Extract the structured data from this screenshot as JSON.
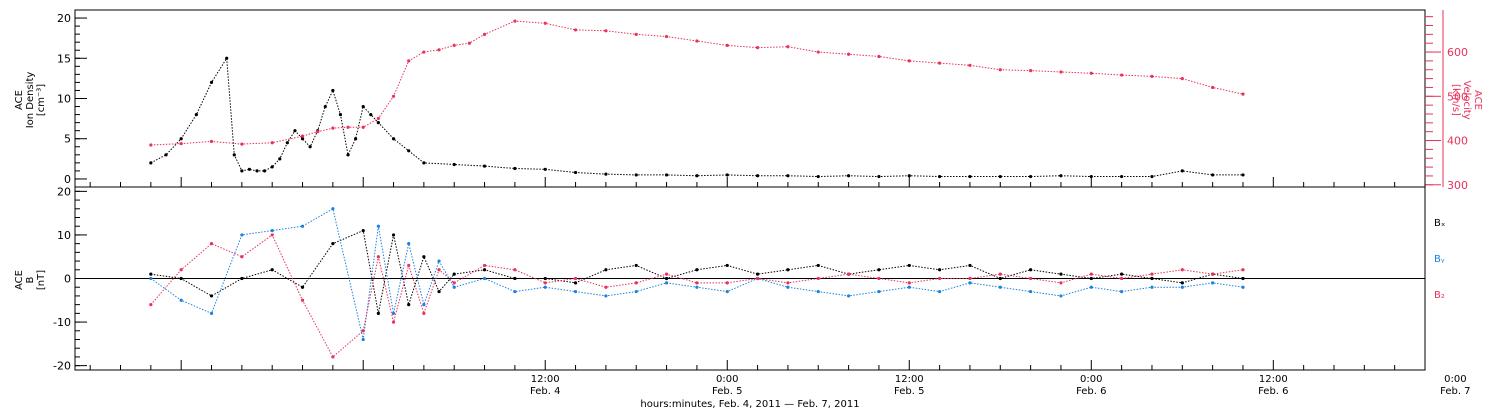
{
  "chart_data": [
    {
      "type": "scatter",
      "panel": "top",
      "left_axis": {
        "label_lines": [
          "ACE",
          "Ion Density",
          "[cm⁻³]"
        ],
        "ylim": [
          -1,
          21
        ],
        "ticks": [
          0,
          5,
          10,
          15,
          20
        ],
        "tick_labels": [
          "0",
          "5",
          "10",
          "15",
          "20"
        ]
      },
      "right_axis": {
        "label_lines": [
          "ACE",
          "Velocity",
          "[km/s]"
        ],
        "ylim": [
          295,
          695
        ],
        "ticks": [
          300,
          400,
          500,
          600
        ],
        "tick_labels": [
          "300",
          "400",
          "500",
          "600"
        ]
      },
      "series": [
        {
          "color": "#000000",
          "axis": "left",
          "x": [
            -14,
            -13,
            -12,
            -11,
            -10,
            -9,
            -8.5,
            -8,
            -7.5,
            -7,
            -6.5,
            -6,
            -5.5,
            -5,
            -4.5,
            -4,
            -3.5,
            -3,
            -2.5,
            -2,
            -1.5,
            -1,
            -0.5,
            0,
            0.5,
            1,
            2,
            3,
            4,
            6,
            8,
            10,
            12,
            14,
            16,
            18,
            20,
            22,
            24,
            26,
            28,
            30,
            32,
            34,
            36,
            38,
            40,
            42,
            44,
            46,
            48,
            50,
            52,
            54,
            56,
            58
          ],
          "y": [
            2,
            3,
            5,
            8,
            12,
            15,
            3,
            1,
            1.2,
            1,
            1,
            1.5,
            2.5,
            4.5,
            6,
            5,
            4,
            6,
            9,
            11,
            8,
            3,
            5,
            9,
            8,
            7,
            5,
            3.5,
            2,
            1.8,
            1.6,
            1.3,
            1.2,
            0.8,
            0.6,
            0.5,
            0.5,
            0.4,
            0.5,
            0.4,
            0.4,
            0.3,
            0.4,
            0.3,
            0.4,
            0.3,
            0.3,
            0.3,
            0.3,
            0.4,
            0.3,
            0.3,
            0.3,
            1,
            0.5,
            0.5
          ]
        },
        {
          "color": "#e8325a",
          "axis": "right",
          "x": [
            -14,
            -12,
            -10,
            -8,
            -6,
            -4,
            -3,
            -2,
            -1,
            0,
            1,
            2,
            3,
            4,
            5,
            6,
            7,
            8,
            10,
            12,
            14,
            16,
            18,
            20,
            22,
            24,
            26,
            28,
            30,
            32,
            34,
            36,
            38,
            40,
            42,
            44,
            46,
            48,
            50,
            52,
            54,
            56,
            58
          ],
          "y": [
            390,
            393,
            398,
            392,
            395,
            410,
            420,
            428,
            430,
            430,
            450,
            500,
            580,
            600,
            605,
            615,
            620,
            640,
            670,
            665,
            650,
            648,
            640,
            635,
            625,
            615,
            610,
            612,
            600,
            595,
            590,
            580,
            575,
            570,
            560,
            558,
            555,
            552,
            548,
            545,
            540,
            520,
            505
          ]
        }
      ]
    },
    {
      "type": "scatter",
      "panel": "bottom",
      "left_axis": {
        "label_lines": [
          "ACE",
          "B",
          "[nT]"
        ],
        "ylim": [
          -21,
          21
        ],
        "ticks": [
          -20,
          -10,
          0,
          10,
          20
        ],
        "tick_labels": [
          "-20",
          "-10",
          "0",
          "10",
          "20"
        ]
      },
      "legend": {
        "placement": "right",
        "entries": [
          {
            "text": "Bₓ",
            "color": "#000000"
          },
          {
            "text": "Bᵧ",
            "color": "#1a82e0"
          },
          {
            "text": "B₂",
            "color": "#e8325a"
          }
        ]
      },
      "series": [
        {
          "color": "#000000",
          "x": [
            -14,
            -12,
            -10,
            -8,
            -6,
            -4,
            -2,
            0,
            1,
            2,
            3,
            4,
            5,
            6,
            8,
            10,
            12,
            14,
            16,
            18,
            20,
            22,
            24,
            26,
            28,
            30,
            32,
            34,
            36,
            38,
            40,
            42,
            44,
            46,
            48,
            50,
            52,
            54,
            56,
            58
          ],
          "y": [
            1,
            0,
            -4,
            0,
            2,
            -2,
            8,
            11,
            -8,
            10,
            -6,
            5,
            -3,
            1,
            2,
            0,
            0,
            -1,
            2,
            3,
            0,
            2,
            3,
            1,
            2,
            3,
            1,
            2,
            3,
            2,
            3,
            0,
            2,
            1,
            0,
            1,
            0,
            -1,
            1,
            0
          ]
        },
        {
          "color": "#1a82e0",
          "x": [
            -14,
            -12,
            -10,
            -8,
            -6,
            -4,
            -2,
            0,
            1,
            2,
            3,
            4,
            5,
            6,
            8,
            10,
            12,
            14,
            16,
            18,
            20,
            22,
            24,
            26,
            28,
            30,
            32,
            34,
            36,
            38,
            40,
            42,
            44,
            46,
            48,
            50,
            52,
            54,
            56,
            58
          ],
          "y": [
            0,
            -5,
            -8,
            10,
            11,
            12,
            16,
            -14,
            12,
            -8,
            8,
            -6,
            4,
            -2,
            0,
            -3,
            -2,
            -3,
            -4,
            -3,
            -1,
            -2,
            -3,
            0,
            -2,
            -3,
            -4,
            -3,
            -2,
            -3,
            -1,
            -2,
            -3,
            -4,
            -2,
            -3,
            -2,
            -2,
            -1,
            -2
          ]
        },
        {
          "color": "#e8325a",
          "x": [
            -14,
            -12,
            -10,
            -8,
            -6,
            -4,
            -2,
            0,
            1,
            2,
            3,
            4,
            5,
            6,
            8,
            10,
            12,
            14,
            16,
            18,
            20,
            22,
            24,
            26,
            28,
            30,
            32,
            34,
            36,
            38,
            40,
            42,
            44,
            46,
            48,
            50,
            52,
            54,
            56,
            58
          ],
          "y": [
            -6,
            2,
            8,
            5,
            10,
            -5,
            -18,
            -12,
            5,
            -10,
            3,
            -8,
            2,
            -1,
            3,
            2,
            -1,
            0,
            -2,
            -1,
            1,
            -1,
            -1,
            0,
            -1,
            0,
            1,
            0,
            -1,
            0,
            0,
            1,
            0,
            -1,
            1,
            0,
            1,
            2,
            1,
            2
          ]
        }
      ]
    }
  ],
  "x_axis": {
    "xlim": [
      -19,
      70
    ],
    "ticks": [
      {
        "x": 12,
        "time": "12:00",
        "date": "Feb. 4"
      },
      {
        "x": 24,
        "time": "0:00",
        "date": "Feb. 5"
      },
      {
        "x": 36,
        "time": "12:00",
        "date": "Feb. 5"
      },
      {
        "x": 48,
        "time": "0:00",
        "date": "Feb. 6"
      },
      {
        "x": 60,
        "time": "12:00",
        "date": "Feb. 6"
      },
      {
        "x": 72,
        "time": "0:00",
        "date": "Feb. 7"
      }
    ],
    "label": "hours:minutes, Feb.  4, 2011 — Feb.  7, 2011"
  },
  "colors": {
    "black": "#000000",
    "blue": "#1a82e0",
    "red": "#e8325a"
  }
}
